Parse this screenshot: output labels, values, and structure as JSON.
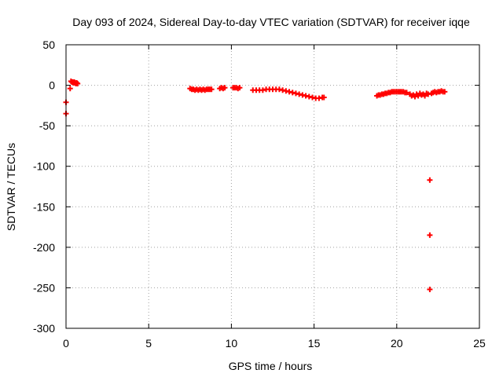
{
  "chart_data": {
    "type": "scatter",
    "title": "Day 093 of 2024, Sidereal Day-to-day VTEC variation (SDTVAR) for receiver iqqe",
    "xlabel": "GPS time / hours",
    "ylabel": "SDTVAR / TECUs",
    "xlim": [
      0,
      25
    ],
    "ylim": [
      -300,
      50
    ],
    "xticks": [
      0,
      5,
      10,
      15,
      20,
      25
    ],
    "yticks": [
      50,
      0,
      -50,
      -100,
      -150,
      -200,
      -250,
      -300
    ],
    "xtick_labels": [
      "0",
      "5",
      "10",
      "15",
      "20",
      "25"
    ],
    "ytick_labels": [
      "50",
      "0",
      "-50",
      "-100",
      "-150",
      "-200",
      "-250",
      "-300"
    ],
    "grid": true,
    "marker": "plus",
    "colors": {
      "series": "#ff0000",
      "grid": "#a0a0a0",
      "axis": "#000000"
    },
    "series": [
      {
        "points": [
          [
            0.0,
            -21
          ],
          [
            0.0,
            -35
          ],
          [
            0.25,
            -4
          ],
          [
            0.3,
            5
          ],
          [
            0.35,
            4
          ],
          [
            0.4,
            4
          ],
          [
            0.45,
            3
          ],
          [
            0.5,
            4
          ],
          [
            0.55,
            3
          ],
          [
            0.6,
            2
          ],
          [
            0.65,
            3
          ],
          [
            0.7,
            2
          ],
          [
            7.5,
            -4
          ],
          [
            7.6,
            -5
          ],
          [
            7.7,
            -5
          ],
          [
            7.8,
            -6
          ],
          [
            7.9,
            -5
          ],
          [
            8.0,
            -6
          ],
          [
            8.1,
            -5
          ],
          [
            8.2,
            -6
          ],
          [
            8.3,
            -5
          ],
          [
            8.4,
            -6
          ],
          [
            8.5,
            -5
          ],
          [
            8.6,
            -5
          ],
          [
            8.7,
            -5
          ],
          [
            8.8,
            -5
          ],
          [
            9.3,
            -4
          ],
          [
            9.4,
            -3
          ],
          [
            9.5,
            -4
          ],
          [
            9.6,
            -3
          ],
          [
            10.1,
            -3
          ],
          [
            10.2,
            -3
          ],
          [
            10.3,
            -3
          ],
          [
            10.4,
            -4
          ],
          [
            10.5,
            -3
          ],
          [
            11.3,
            -6
          ],
          [
            11.5,
            -6
          ],
          [
            11.7,
            -6
          ],
          [
            11.9,
            -6
          ],
          [
            12.1,
            -5
          ],
          [
            12.3,
            -5
          ],
          [
            12.5,
            -5
          ],
          [
            12.7,
            -5
          ],
          [
            12.9,
            -5
          ],
          [
            13.1,
            -6
          ],
          [
            13.3,
            -7
          ],
          [
            13.5,
            -8
          ],
          [
            13.7,
            -9
          ],
          [
            13.9,
            -10
          ],
          [
            14.1,
            -11
          ],
          [
            14.3,
            -12
          ],
          [
            14.5,
            -13
          ],
          [
            14.7,
            -14
          ],
          [
            14.9,
            -15
          ],
          [
            15.1,
            -16
          ],
          [
            15.3,
            -16
          ],
          [
            15.5,
            -15
          ],
          [
            15.6,
            -15
          ],
          [
            18.8,
            -13
          ],
          [
            18.9,
            -12
          ],
          [
            19.0,
            -12
          ],
          [
            19.1,
            -11
          ],
          [
            19.2,
            -11
          ],
          [
            19.3,
            -10
          ],
          [
            19.4,
            -10
          ],
          [
            19.5,
            -9
          ],
          [
            19.6,
            -9
          ],
          [
            19.7,
            -8
          ],
          [
            19.8,
            -8
          ],
          [
            19.9,
            -8
          ],
          [
            20.0,
            -8
          ],
          [
            20.1,
            -8
          ],
          [
            20.2,
            -8
          ],
          [
            20.3,
            -8
          ],
          [
            20.4,
            -8
          ],
          [
            20.5,
            -9
          ],
          [
            20.6,
            -9
          ],
          [
            20.8,
            -11
          ],
          [
            20.9,
            -13
          ],
          [
            21.0,
            -12
          ],
          [
            21.1,
            -14
          ],
          [
            21.2,
            -11
          ],
          [
            21.3,
            -13
          ],
          [
            21.4,
            -10
          ],
          [
            21.5,
            -12
          ],
          [
            21.6,
            -11
          ],
          [
            21.7,
            -13
          ],
          [
            21.8,
            -10
          ],
          [
            21.9,
            -11
          ],
          [
            22.0,
            -117
          ],
          [
            22.0,
            -185
          ],
          [
            22.0,
            -252
          ],
          [
            22.1,
            -10
          ],
          [
            22.2,
            -9
          ],
          [
            22.3,
            -8
          ],
          [
            22.4,
            -9
          ],
          [
            22.5,
            -8
          ],
          [
            22.6,
            -8
          ],
          [
            22.7,
            -7
          ],
          [
            22.8,
            -8
          ],
          [
            22.9,
            -8
          ]
        ]
      }
    ]
  }
}
